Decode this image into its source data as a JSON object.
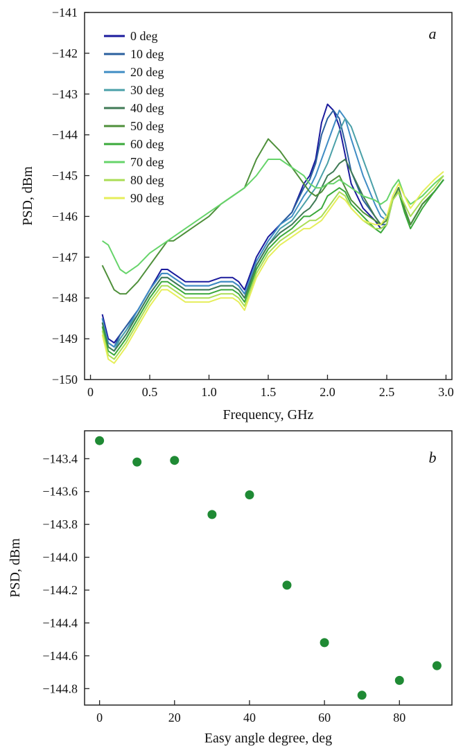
{
  "chart_data": [
    {
      "panel": "a",
      "type": "line",
      "panel_label": "a",
      "title": "",
      "xlabel": "Frequency, GHz",
      "ylabel": "PSD, dBm",
      "xlim": [
        -0.05,
        3.05
      ],
      "ylim": [
        -150,
        -141
      ],
      "xticks": [
        0,
        0.5,
        1.0,
        1.5,
        2.0,
        2.5,
        3.0
      ],
      "xtick_labels": [
        "0",
        "0.5",
        "1.0",
        "1.5",
        "2.0",
        "2.5",
        "3.0"
      ],
      "yticks": [
        -150,
        -149,
        -148,
        -147,
        -146,
        -145,
        -144,
        -143,
        -142,
        -141
      ],
      "ytick_labels": [
        "−150",
        "−149",
        "−148",
        "−147",
        "−146",
        "−145",
        "−144",
        "−143",
        "−142",
        "−141"
      ],
      "legend_position": "top-left",
      "grid": false,
      "x": [
        0.1,
        0.15,
        0.2,
        0.25,
        0.3,
        0.4,
        0.5,
        0.6,
        0.65,
        0.7,
        0.75,
        0.8,
        0.85,
        0.9,
        1.0,
        1.1,
        1.2,
        1.25,
        1.3,
        1.4,
        1.5,
        1.6,
        1.7,
        1.8,
        1.85,
        1.9,
        1.95,
        2.0,
        2.05,
        2.1,
        2.15,
        2.2,
        2.3,
        2.4,
        2.45,
        2.5,
        2.55,
        2.6,
        2.65,
        2.7,
        2.8,
        2.9,
        2.98
      ],
      "series": [
        {
          "name": "0 deg",
          "color": "#1a1a9c",
          "values": [
            -148.4,
            -149.0,
            -149.1,
            -148.9,
            -148.7,
            -148.3,
            -147.8,
            -147.3,
            -147.3,
            -147.4,
            -147.5,
            -147.6,
            -147.6,
            -147.6,
            -147.6,
            -147.5,
            -147.5,
            -147.6,
            -147.8,
            -147.0,
            -146.5,
            -146.2,
            -145.9,
            -145.2,
            -145.0,
            -144.6,
            -143.7,
            -143.25,
            -143.4,
            -143.8,
            -144.5,
            -145.2,
            -145.8,
            -146.1,
            -146.3,
            -146.2,
            -145.6,
            -145.3,
            -145.8,
            -146.2,
            -145.7,
            -145.4,
            -145.1
          ]
        },
        {
          "name": "10 deg",
          "color": "#2a5f9e",
          "values": [
            -148.5,
            -149.1,
            -149.2,
            -148.9,
            -148.7,
            -148.3,
            -147.8,
            -147.4,
            -147.4,
            -147.5,
            -147.6,
            -147.7,
            -147.7,
            -147.7,
            -147.7,
            -147.6,
            -147.6,
            -147.7,
            -147.9,
            -147.1,
            -146.6,
            -146.2,
            -145.9,
            -145.3,
            -145.1,
            -144.7,
            -144.0,
            -143.6,
            -143.4,
            -143.6,
            -144.2,
            -144.9,
            -145.6,
            -146.0,
            -146.2,
            -146.2,
            -145.6,
            -145.3,
            -145.8,
            -146.2,
            -145.7,
            -145.4,
            -145.1
          ]
        },
        {
          "name": "20 deg",
          "color": "#3f8cc4",
          "values": [
            -148.5,
            -149.1,
            -149.2,
            -149.0,
            -148.8,
            -148.3,
            -147.8,
            -147.4,
            -147.4,
            -147.5,
            -147.6,
            -147.7,
            -147.7,
            -147.7,
            -147.7,
            -147.6,
            -147.6,
            -147.7,
            -147.9,
            -147.1,
            -146.6,
            -146.2,
            -146.0,
            -145.5,
            -145.3,
            -145.0,
            -144.6,
            -144.2,
            -143.8,
            -143.4,
            -143.6,
            -144.1,
            -145.0,
            -145.7,
            -146.0,
            -146.1,
            -145.6,
            -145.3,
            -145.8,
            -146.2,
            -145.7,
            -145.4,
            -145.1
          ]
        },
        {
          "name": "30 deg",
          "color": "#4aa0a8",
          "values": [
            -148.6,
            -149.2,
            -149.3,
            -149.0,
            -148.8,
            -148.4,
            -147.9,
            -147.5,
            -147.5,
            -147.6,
            -147.7,
            -147.8,
            -147.8,
            -147.8,
            -147.8,
            -147.7,
            -147.7,
            -147.8,
            -148.0,
            -147.2,
            -146.7,
            -146.3,
            -146.1,
            -145.7,
            -145.5,
            -145.3,
            -145.0,
            -144.7,
            -144.3,
            -143.9,
            -143.6,
            -143.8,
            -144.6,
            -145.4,
            -145.8,
            -146.0,
            -145.6,
            -145.3,
            -145.8,
            -146.2,
            -145.7,
            -145.4,
            -145.1
          ]
        },
        {
          "name": "40 deg",
          "color": "#3f7a55",
          "values": [
            -148.6,
            -149.2,
            -149.3,
            -149.1,
            -148.9,
            -148.4,
            -147.9,
            -147.5,
            -147.5,
            -147.6,
            -147.7,
            -147.8,
            -147.8,
            -147.8,
            -147.8,
            -147.7,
            -147.7,
            -147.8,
            -148.0,
            -147.2,
            -146.7,
            -146.4,
            -146.2,
            -145.9,
            -145.8,
            -145.6,
            -145.3,
            -145.0,
            -144.9,
            -144.7,
            -144.6,
            -144.9,
            -145.5,
            -146.0,
            -146.2,
            -146.1,
            -145.6,
            -145.3,
            -145.8,
            -146.2,
            -145.7,
            -145.4,
            -145.1
          ]
        },
        {
          "name": "50 deg",
          "color": "#4e8f3a",
          "values": [
            -147.2,
            -147.5,
            -147.8,
            -147.9,
            -147.9,
            -147.6,
            -147.2,
            -146.8,
            -146.6,
            -146.6,
            -146.5,
            -146.4,
            -146.3,
            -146.2,
            -146.0,
            -145.7,
            -145.5,
            -145.4,
            -145.3,
            -144.6,
            -144.1,
            -144.4,
            -144.8,
            -145.2,
            -145.4,
            -145.5,
            -145.4,
            -145.2,
            -145.1,
            -145.0,
            -145.3,
            -145.6,
            -145.9,
            -146.1,
            -146.2,
            -146.1,
            -145.6,
            -145.3,
            -145.8,
            -146.2,
            -145.7,
            -145.4,
            -145.1
          ]
        },
        {
          "name": "60 deg",
          "color": "#3aa83a",
          "values": [
            -148.7,
            -149.3,
            -149.4,
            -149.2,
            -149.0,
            -148.5,
            -148.0,
            -147.6,
            -147.6,
            -147.7,
            -147.8,
            -147.9,
            -147.9,
            -147.9,
            -147.9,
            -147.8,
            -147.8,
            -147.9,
            -148.1,
            -147.3,
            -146.8,
            -146.5,
            -146.3,
            -146.0,
            -146.0,
            -145.9,
            -145.8,
            -145.5,
            -145.4,
            -145.3,
            -145.4,
            -145.7,
            -146.0,
            -146.3,
            -146.4,
            -146.2,
            -145.6,
            -145.4,
            -145.9,
            -146.3,
            -145.8,
            -145.4,
            -145.1
          ]
        },
        {
          "name": "70 deg",
          "color": "#66d46a",
          "values": [
            -146.6,
            -146.7,
            -147.0,
            -147.3,
            -147.4,
            -147.2,
            -146.9,
            -146.7,
            -146.6,
            -146.5,
            -146.4,
            -146.3,
            -146.2,
            -146.1,
            -145.9,
            -145.7,
            -145.5,
            -145.4,
            -145.3,
            -145.0,
            -144.6,
            -144.6,
            -144.8,
            -145.0,
            -145.2,
            -145.3,
            -145.3,
            -145.2,
            -145.2,
            -145.1,
            -145.2,
            -145.3,
            -145.5,
            -145.6,
            -145.7,
            -145.6,
            -145.3,
            -145.1,
            -145.5,
            -145.7,
            -145.5,
            -145.2,
            -145.0
          ]
        },
        {
          "name": "80 deg",
          "color": "#aadd55",
          "values": [
            -148.8,
            -149.4,
            -149.5,
            -149.3,
            -149.1,
            -148.6,
            -148.1,
            -147.7,
            -147.7,
            -147.8,
            -147.9,
            -148.0,
            -148.0,
            -148.0,
            -148.0,
            -147.9,
            -147.9,
            -148.0,
            -148.2,
            -147.4,
            -146.9,
            -146.6,
            -146.4,
            -146.2,
            -146.1,
            -146.1,
            -146.0,
            -145.8,
            -145.6,
            -145.4,
            -145.5,
            -145.8,
            -146.1,
            -146.3,
            -146.3,
            -146.2,
            -145.6,
            -145.4,
            -145.7,
            -146.0,
            -145.6,
            -145.3,
            -145.0
          ]
        },
        {
          "name": "90 deg",
          "color": "#e6ee5a",
          "values": [
            -148.9,
            -149.5,
            -149.6,
            -149.4,
            -149.2,
            -148.7,
            -148.2,
            -147.8,
            -147.8,
            -147.9,
            -148.0,
            -148.1,
            -148.1,
            -148.1,
            -148.1,
            -148.0,
            -148.0,
            -148.1,
            -148.3,
            -147.5,
            -147.0,
            -146.7,
            -146.5,
            -146.3,
            -146.3,
            -146.2,
            -146.1,
            -145.9,
            -145.7,
            -145.5,
            -145.6,
            -145.8,
            -146.1,
            -146.2,
            -146.2,
            -146.0,
            -145.5,
            -145.2,
            -145.5,
            -145.8,
            -145.4,
            -145.1,
            -144.9
          ]
        }
      ]
    },
    {
      "panel": "b",
      "type": "scatter",
      "panel_label": "b",
      "title": "",
      "xlabel": "Easy angle degree, deg",
      "ylabel": "PSD, dBm",
      "xlim": [
        -4,
        94
      ],
      "ylim": [
        -144.9,
        -143.23
      ],
      "xticks": [
        0,
        20,
        40,
        60,
        80
      ],
      "xtick_labels": [
        "0",
        "20",
        "40",
        "60",
        "80"
      ],
      "yticks": [
        -143.4,
        -143.6,
        -143.8,
        -144.0,
        -144.2,
        -144.4,
        -144.6,
        -144.8
      ],
      "ytick_labels": [
        "−143.4",
        "−143.6",
        "−143.8",
        "−144.0",
        "−144.2",
        "−144.4",
        "−144.6",
        "−144.8"
      ],
      "grid": false,
      "marker_color": "#1f8a34",
      "x": [
        0,
        10,
        20,
        30,
        40,
        50,
        60,
        70,
        80,
        90
      ],
      "y": [
        -143.29,
        -143.42,
        -143.41,
        -143.74,
        -143.62,
        -144.17,
        -144.52,
        -144.84,
        -144.75,
        -144.66
      ]
    }
  ]
}
